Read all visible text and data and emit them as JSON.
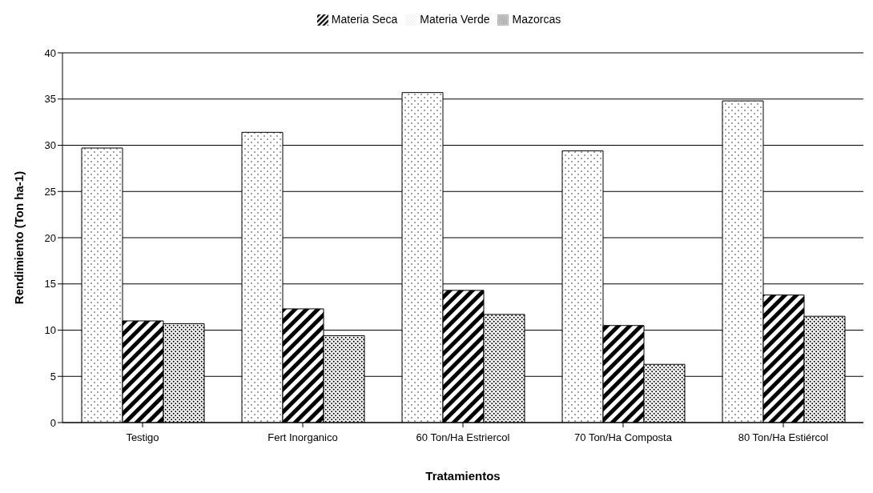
{
  "chart_data": {
    "type": "bar",
    "xlabel": "Tratamientos",
    "ylabel": "Rendimiento (Ton ha-1)",
    "categories": [
      "Testigo",
      "Fert Inorganico",
      "60 Ton/Ha Estriercol",
      "70 Ton/Ha Composta",
      "80 Ton/Ha Estiércol"
    ],
    "series": [
      {
        "name": "Materia Verde",
        "color": "#000000",
        "values": [
          29.7,
          31.4,
          35.7,
          29.4,
          34.8
        ]
      },
      {
        "name": "Materia Seca",
        "color": "#000000",
        "values": [
          11.0,
          12.3,
          14.3,
          10.5,
          13.8
        ]
      },
      {
        "name": "Mazorcas",
        "color": "#000000",
        "values": [
          10.7,
          9.4,
          11.7,
          6.3,
          11.5
        ]
      }
    ],
    "ylim": [
      0,
      40
    ],
    "yticks": [
      0,
      5,
      10,
      15,
      20,
      25,
      30,
      35,
      40
    ],
    "grid": "y",
    "legend": "top"
  }
}
